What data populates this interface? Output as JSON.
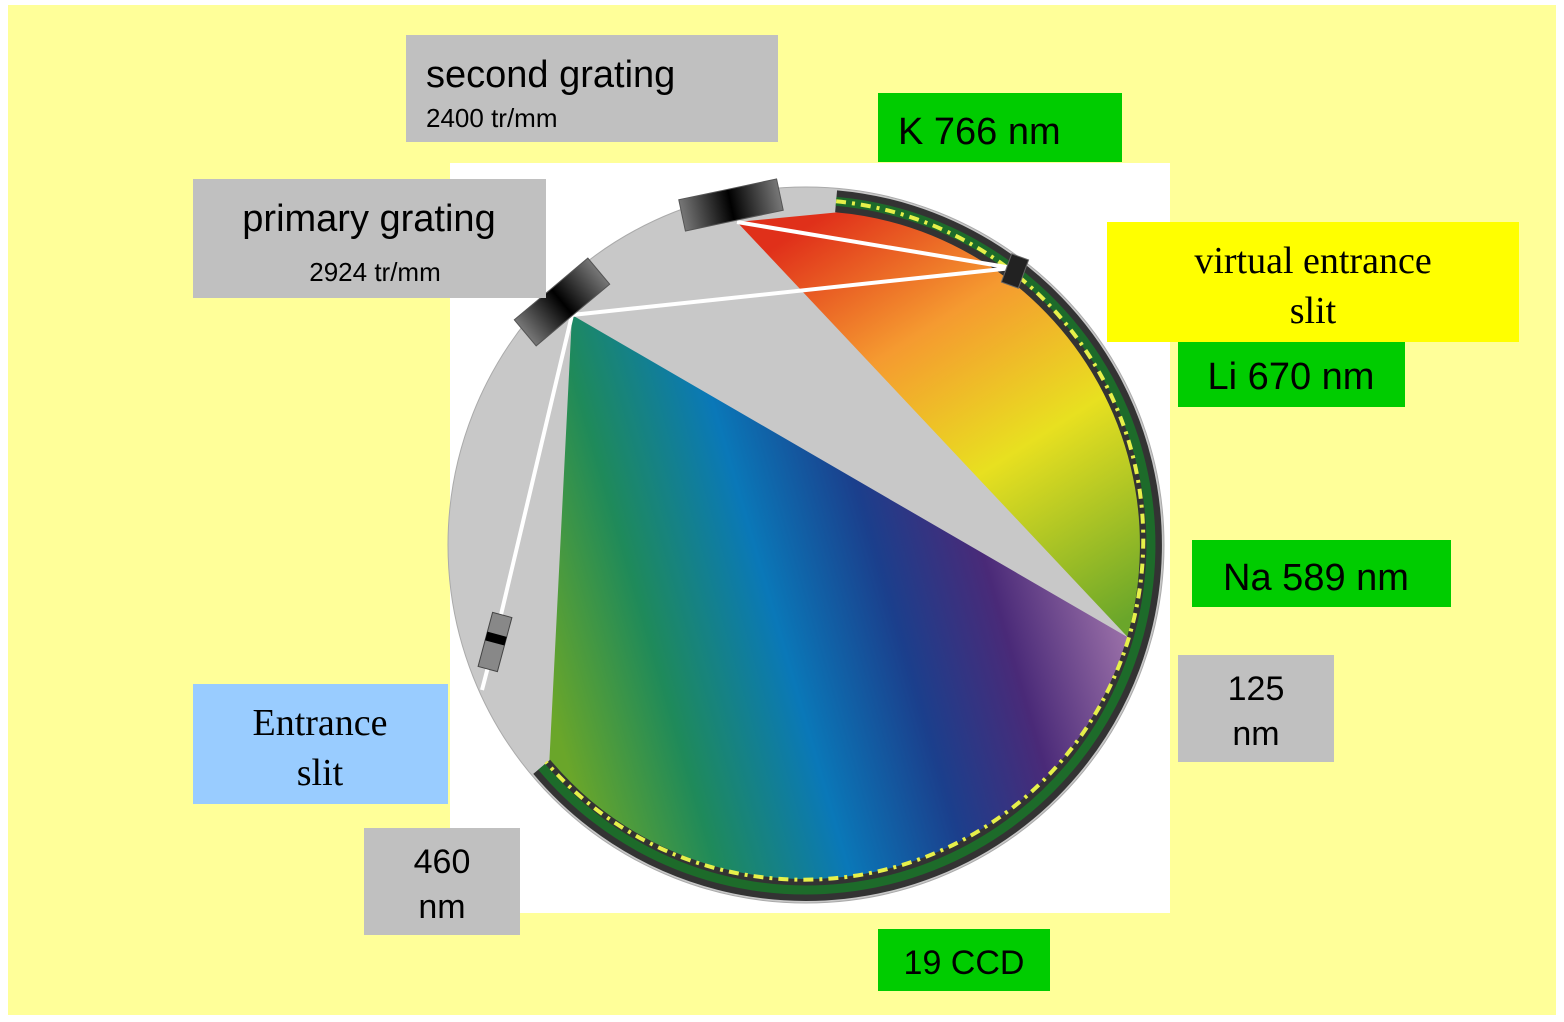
{
  "second_grating": {
    "title": "second grating",
    "density": "2400 tr/mm"
  },
  "primary_grating": {
    "title": "primary grating",
    "density": "2924 tr/mm"
  },
  "k_line": "K 766 nm",
  "virtual_entrance_slit": {
    "lines": [
      "virtual entrance",
      "slit"
    ]
  },
  "li_line": "Li 670 nm",
  "na_line": "Na 589 nm",
  "upper_limit": {
    "lines": [
      "125",
      "nm"
    ]
  },
  "entrance_slit": {
    "lines": [
      "Entrance",
      "slit"
    ]
  },
  "lower_limit": {
    "lines": [
      "460",
      "nm"
    ]
  },
  "detector": "19 CCD"
}
